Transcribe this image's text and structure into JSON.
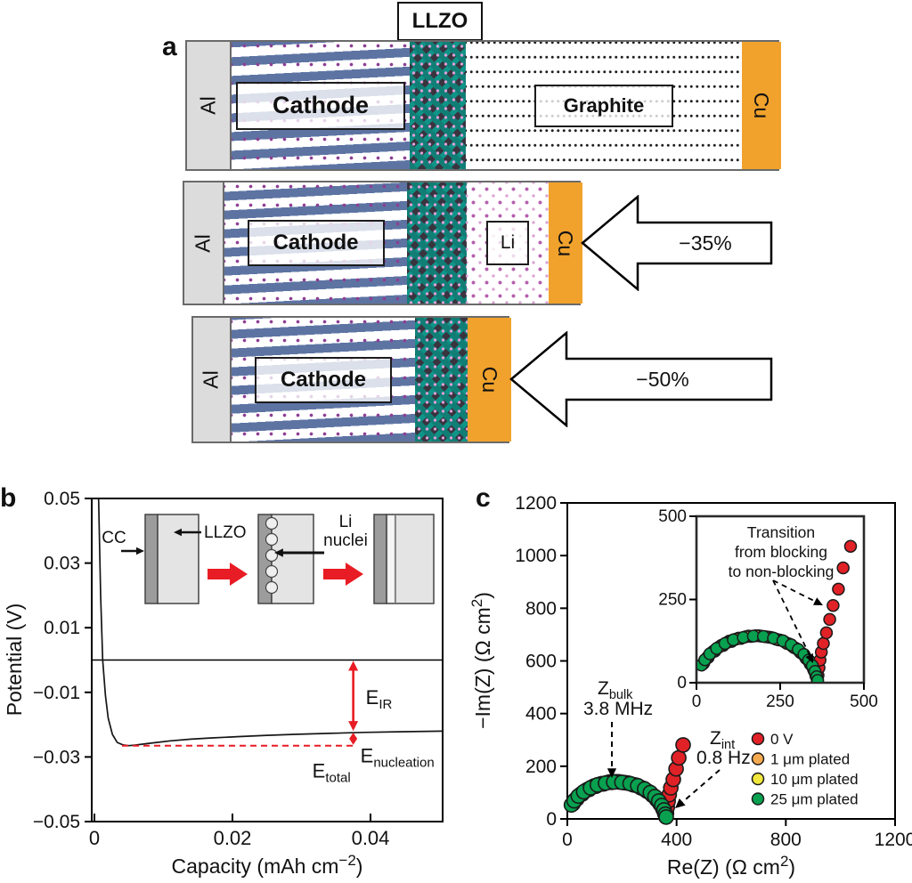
{
  "figure": {
    "llzo_title": "LLZO",
    "panels": {
      "a": "a",
      "b": "b",
      "c": "c"
    }
  },
  "panel_a": {
    "al_label": "Al",
    "cu_label": "Cu",
    "cathode_label": "Cathode",
    "graphite_label": "Graphite",
    "li_label": "Li",
    "arrow_35": "−35%",
    "arrow_50": "−50%",
    "colors": {
      "al": "#dcdcdc",
      "cu": "#f1a22c",
      "cathode_bar": "#5d74a3",
      "cathode_dot": "#8e3e94",
      "llzo_teal": "#0f9488",
      "llzo_dark": "#453f4d"
    }
  },
  "chart_data": [
    {
      "id": "panel_b",
      "type": "line",
      "title": "",
      "xlabel": {
        "pre": "Capacity (mAh cm",
        "sup": "−2",
        "post": ")"
      },
      "ylabel": "Potential (V)",
      "xlim": [
        0,
        0.05
      ],
      "ylim": [
        -0.05,
        0.05
      ],
      "grid": false,
      "xticks": [
        {
          "v": 0,
          "label": "0"
        },
        {
          "v": 0.02,
          "label": "0.02"
        },
        {
          "v": 0.04,
          "label": "0.04"
        }
      ],
      "yticks": [
        {
          "v": 0.05,
          "label": "0.05"
        },
        {
          "v": 0.03,
          "label": "0.03"
        },
        {
          "v": 0.01,
          "label": "0.01"
        },
        {
          "v": -0.01,
          "label": "−0.01"
        },
        {
          "v": -0.03,
          "label": "−0.03"
        },
        {
          "v": -0.05,
          "label": "−0.05"
        }
      ],
      "zero_line_y": 0,
      "curve": [
        [
          0.0006,
          0.05
        ],
        [
          0.0009,
          0.02
        ],
        [
          0.0012,
          0.0
        ],
        [
          0.0016,
          -0.011
        ],
        [
          0.002,
          -0.018
        ],
        [
          0.0026,
          -0.023
        ],
        [
          0.0033,
          -0.0255
        ],
        [
          0.0042,
          -0.0263
        ],
        [
          0.005,
          -0.0265
        ],
        [
          0.006,
          -0.0263
        ],
        [
          0.0075,
          -0.0259
        ],
        [
          0.009,
          -0.0255
        ],
        [
          0.011,
          -0.025
        ],
        [
          0.014,
          -0.0245
        ],
        [
          0.017,
          -0.0241
        ],
        [
          0.021,
          -0.0237
        ],
        [
          0.025,
          -0.0233
        ],
        [
          0.029,
          -0.023
        ],
        [
          0.034,
          -0.0227
        ],
        [
          0.039,
          -0.0224
        ],
        [
          0.044,
          -0.0222
        ],
        [
          0.0504,
          -0.022
        ]
      ],
      "annotations": {
        "eir": {
          "main": "E",
          "sub": "IR",
          "arrow_x": 0.0375,
          "from_y": 0,
          "to_y": -0.0222
        },
        "enucleation": {
          "main": "E",
          "sub": "nucleation",
          "from_y": -0.0222,
          "to_y": -0.0265
        },
        "etotal": {
          "main": "E",
          "sub": "total"
        },
        "dashed_line": {
          "y": -0.0265,
          "x1": 0.004,
          "x2": 0.0375
        },
        "accent_color": "#e81c24"
      },
      "inset_labels": {
        "cc": "CC",
        "llzo": "LLZO",
        "li_line1": "Li",
        "li_line2": "nuclei"
      }
    },
    {
      "id": "panel_c",
      "type": "scatter",
      "title": "",
      "xlabel": {
        "pre": "Re(Z) (Ω cm",
        "sup": "2",
        "post": ")"
      },
      "ylabel": {
        "pre": "−Im(Z) (Ω cm",
        "sup": "2",
        "post": ")"
      },
      "xlim": [
        0,
        1200
      ],
      "ylim": [
        0,
        1200
      ],
      "grid": false,
      "legend_position": "inside right",
      "xticks": [
        {
          "v": 0,
          "label": "0"
        },
        {
          "v": 400,
          "label": "400"
        },
        {
          "v": 800,
          "label": "800"
        },
        {
          "v": 1200,
          "label": "1200"
        }
      ],
      "yticks": [
        {
          "v": 0,
          "label": "0"
        },
        {
          "v": 200,
          "label": "200"
        },
        {
          "v": 400,
          "label": "400"
        },
        {
          "v": 600,
          "label": "600"
        },
        {
          "v": 800,
          "label": "800"
        },
        {
          "v": 1000,
          "label": "1000"
        },
        {
          "v": 1200,
          "label": "1200"
        }
      ],
      "series": [
        {
          "name": "0 V",
          "color": "#e02227",
          "points": [
            [
              20,
              57
            ],
            [
              35,
              76
            ],
            [
              55,
              95
            ],
            [
              80,
              112
            ],
            [
              105,
              124
            ],
            [
              133,
              133
            ],
            [
              162,
              139
            ],
            [
              192,
              140
            ],
            [
              222,
              136
            ],
            [
              250,
              128
            ],
            [
              275,
              117
            ],
            [
              296,
              104
            ],
            [
              314,
              89
            ],
            [
              329,
              72
            ],
            [
              341,
              55
            ],
            [
              351,
              37
            ],
            [
              357,
              20
            ],
            [
              361,
              8
            ],
            [
              363,
              22
            ],
            [
              366,
              45
            ],
            [
              369,
              68
            ],
            [
              373,
              92
            ],
            [
              379,
              118
            ],
            [
              388,
              150
            ],
            [
              398,
              190
            ],
            [
              408,
              232
            ],
            [
              424,
              281
            ]
          ]
        },
        {
          "name": "1 μm plated",
          "color": "#f6aa50",
          "points": [
            [
              22,
              60
            ],
            [
              34,
              78
            ],
            [
              52,
              96
            ],
            [
              74,
              112
            ],
            [
              98,
              125
            ],
            [
              126,
              134
            ],
            [
              155,
              140
            ],
            [
              185,
              141
            ],
            [
              215,
              137
            ],
            [
              244,
              129
            ],
            [
              270,
              118
            ],
            [
              292,
              105
            ],
            [
              311,
              90
            ],
            [
              327,
              73
            ],
            [
              340,
              56
            ],
            [
              350,
              39
            ],
            [
              357,
              22
            ],
            [
              361,
              9
            ]
          ]
        },
        {
          "name": "10 μm plated",
          "color": "#f1e73c",
          "points": [
            [
              18,
              56
            ],
            [
              30,
              73
            ],
            [
              46,
              91
            ],
            [
              67,
              107
            ],
            [
              92,
              121
            ],
            [
              118,
              131
            ],
            [
              147,
              138
            ],
            [
              177,
              141
            ],
            [
              207,
              138
            ],
            [
              237,
              131
            ],
            [
              264,
              122
            ],
            [
              287,
              109
            ],
            [
              307,
              95
            ],
            [
              324,
              79
            ],
            [
              337,
              62
            ],
            [
              348,
              45
            ],
            [
              355,
              28
            ],
            [
              360,
              12
            ]
          ]
        },
        {
          "name": "25 μm plated",
          "color": "#07a14f",
          "points": [
            [
              15,
              53
            ],
            [
              25,
              69
            ],
            [
              40,
              87
            ],
            [
              60,
              103
            ],
            [
              85,
              118
            ],
            [
              110,
              129
            ],
            [
              140,
              136
            ],
            [
              170,
              140
            ],
            [
              200,
              139
            ],
            [
              230,
              134
            ],
            [
              258,
              126
            ],
            [
              283,
              114
            ],
            [
              304,
              100
            ],
            [
              321,
              85
            ],
            [
              335,
              68
            ],
            [
              346,
              51
            ],
            [
              354,
              34
            ],
            [
              359,
              18
            ],
            [
              362,
              7
            ]
          ]
        }
      ],
      "red_tail_inset_only": [
        [
          438,
          345
        ],
        [
          460,
          410
        ]
      ],
      "inset": {
        "xlim": [
          0,
          500
        ],
        "ylim": [
          0,
          500
        ],
        "xticks": [
          {
            "v": 0,
            "label": "0"
          },
          {
            "v": 250,
            "label": "250"
          },
          {
            "v": 500,
            "label": "500"
          }
        ],
        "yticks": [
          {
            "v": 0,
            "label": "0"
          },
          {
            "v": 250,
            "label": "250"
          },
          {
            "v": 500,
            "label": "500"
          }
        ],
        "annotation_lines": [
          "Transition",
          "from blocking",
          "to non-blocking"
        ]
      },
      "annotations": {
        "zbulk": {
          "main": "Z",
          "sub": "bulk",
          "line2": "3.8 MHz"
        },
        "zint": {
          "main": "Z",
          "sub": "int",
          "line2": "0.8 Hz"
        }
      }
    }
  ]
}
